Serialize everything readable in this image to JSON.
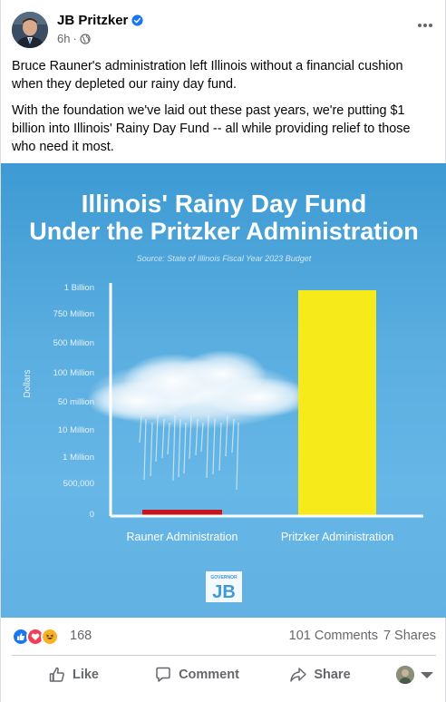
{
  "post": {
    "author": "JB Pritzker",
    "time": "6h",
    "paragraphs": [
      "Bruce Rauner's administration left Illinois without a financial cushion when they depleted our rainy day fund.",
      "With the foundation we've laid out these past years, we're putting $1 billion into Illinois' Rainy Day Fund -- all while providing relief to those who need it most."
    ]
  },
  "image": {
    "title_line1": "Illinois' Rainy Day Fund",
    "title_line2": "Under the Pritzker Administration",
    "source": "Source: State of Illinois Fiscal Year 2023 Budget",
    "badge_small": "GOVERNOR",
    "badge_big": "JB"
  },
  "chart_data": {
    "type": "bar",
    "title": "Illinois' Rainy Day Fund Under the Pritzker Administration",
    "subtitle": "Source: State of Illinois Fiscal Year 2023 Budget",
    "ylabel": "Dollars",
    "xlabel": "",
    "categories": [
      "Rauner Administration",
      "Pritzker Administration"
    ],
    "values": [
      60000,
      1000000000
    ],
    "ytick_labels": [
      "1 Billion",
      "750 Million",
      "500 Million",
      "100 Million",
      "50 million",
      "10 Million",
      "1 Million",
      "500,000",
      "0"
    ],
    "bar_colors": [
      "#c8141c",
      "#f7ea1a"
    ],
    "grid": false
  },
  "stats": {
    "reaction_count": "168",
    "comments": "101 Comments",
    "shares": "7 Shares"
  },
  "actions": {
    "like": "Like",
    "comment": "Comment",
    "share": "Share"
  },
  "colors": {
    "like_blue": "#1877f2",
    "love_red": "#f33e58",
    "haha_yellow": "#f7b125",
    "text_secondary": "#65676b"
  }
}
